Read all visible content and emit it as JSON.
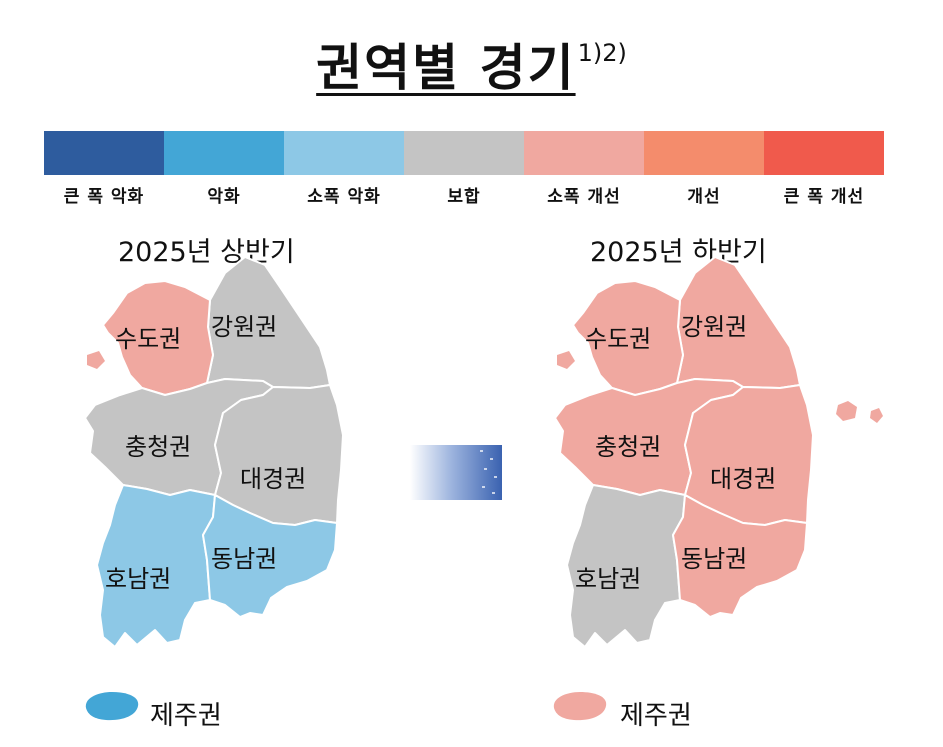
{
  "title": "권역별 경기",
  "title_note": "1)2)",
  "legend": [
    {
      "label": "큰 폭 악화",
      "color": "#2E5C9E"
    },
    {
      "label": "악화",
      "color": "#43A6D6"
    },
    {
      "label": "소폭 악화",
      "color": "#8DC8E6"
    },
    {
      "label": "보합",
      "color": "#C4C4C4"
    },
    {
      "label": "소폭 개선",
      "color": "#F0A8A0"
    },
    {
      "label": "개선",
      "color": "#F48C6C"
    },
    {
      "label": "큰 폭 개선",
      "color": "#F05A4C"
    }
  ],
  "maps": [
    {
      "title": "2025년 상반기",
      "regions": {
        "capital": {
          "label": "수도권",
          "status": "소폭 개선",
          "color": "#F0A8A0"
        },
        "gangwon": {
          "label": "강원권",
          "status": "보합",
          "color": "#C4C4C4"
        },
        "chungcheong": {
          "label": "충청권",
          "status": "보합",
          "color": "#C4C4C4"
        },
        "daegyeong": {
          "label": "대경권",
          "status": "보합",
          "color": "#C4C4C4"
        },
        "honam": {
          "label": "호남권",
          "status": "소폭 악화",
          "color": "#8DC8E6"
        },
        "dongnam": {
          "label": "동남권",
          "status": "소폭 악화",
          "color": "#8DC8E6"
        },
        "jeju": {
          "label": "제주권",
          "status": "악화",
          "color": "#43A6D6"
        }
      }
    },
    {
      "title": "2025년 하반기",
      "regions": {
        "capital": {
          "label": "수도권",
          "status": "소폭 개선",
          "color": "#F0A8A0"
        },
        "gangwon": {
          "label": "강원권",
          "status": "소폭 개선",
          "color": "#F0A8A0"
        },
        "chungcheong": {
          "label": "충청권",
          "status": "소폭 개선",
          "color": "#F0A8A0"
        },
        "daegyeong": {
          "label": "대경권",
          "status": "소폭 개선",
          "color": "#F0A8A0"
        },
        "honam": {
          "label": "호남권",
          "status": "보합",
          "color": "#C4C4C4"
        },
        "dongnam": {
          "label": "동남권",
          "status": "소폭 개선",
          "color": "#F0A8A0"
        },
        "jeju": {
          "label": "제주권",
          "status": "소폭 개선",
          "color": "#F0A8A0"
        }
      }
    }
  ],
  "arrow_color": "#3A62B0"
}
